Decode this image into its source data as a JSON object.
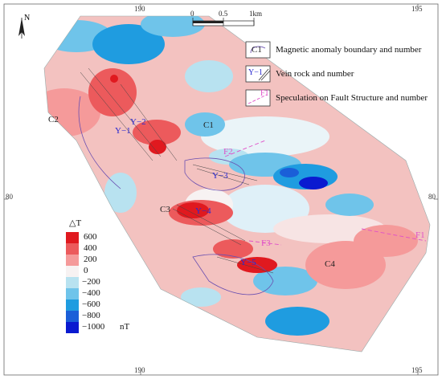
{
  "north_label": "N",
  "grid_ticks": {
    "top": [
      "190",
      "195"
    ],
    "bottom": [
      "190",
      "195"
    ],
    "left": [
      "80"
    ],
    "right": [
      "80"
    ]
  },
  "scale_bar": {
    "labels": [
      "0",
      "0.5",
      "1km"
    ]
  },
  "legend": {
    "items": [
      {
        "symbol": "C1",
        "text": "Magnetic anomaly boundary and number"
      },
      {
        "symbol": "Y−1",
        "text": "Vein rock and number"
      },
      {
        "symbol": "F1",
        "text": "Speculation on Fault Structure and number"
      }
    ]
  },
  "colorbar": {
    "title": "△T",
    "unit": "nT",
    "labels": [
      "600",
      "400",
      "200",
      "0",
      "−200",
      "−400",
      "−600",
      "−800",
      "−1000"
    ],
    "colors": [
      "#e0191f",
      "#ec5a5c",
      "#f59a9a",
      "#f7f2f2",
      "#b8e2f0",
      "#6fc4ea",
      "#1f9ce0",
      "#1a5fd8",
      "#0a1ad0"
    ]
  },
  "map_labels": {
    "anomalies": [
      "C1",
      "C2",
      "C3",
      "C4"
    ],
    "veins": [
      "Y−1",
      "Y−2",
      "Y−3",
      "Y−4",
      "Y−5"
    ],
    "faults": [
      "F1",
      "F2",
      "F3"
    ]
  }
}
